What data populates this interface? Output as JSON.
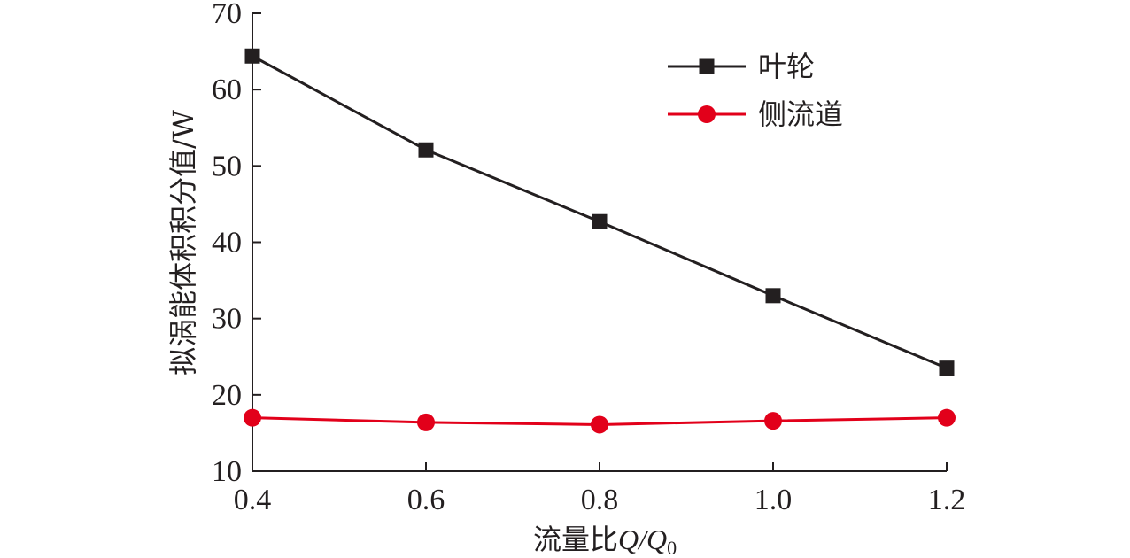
{
  "chart_data": {
    "type": "line",
    "xlabel": "流量比",
    "xlabel_var": "Q/Q",
    "xlabel_sub": "0",
    "ylabel": "拟涡能体积积分值/W",
    "x": [
      0.4,
      0.6,
      0.8,
      1.0,
      1.2
    ],
    "x_tick_labels": [
      "0.4",
      "0.6",
      "0.8",
      "1.0",
      "1.2"
    ],
    "y_ticks": [
      10,
      20,
      30,
      40,
      50,
      60,
      70
    ],
    "y_tick_labels": [
      "10",
      "20",
      "30",
      "40",
      "50",
      "60",
      "70"
    ],
    "xlim": [
      0.4,
      1.2
    ],
    "ylim": [
      10,
      70
    ],
    "grid": false,
    "legend_position": "top-right",
    "series": [
      {
        "name": "叶轮",
        "values": [
          64.4,
          52.1,
          42.7,
          33.0,
          23.5
        ],
        "color": "#231f20",
        "marker": "square"
      },
      {
        "name": "侧流道",
        "values": [
          17.0,
          16.4,
          16.1,
          16.6,
          17.0
        ],
        "color": "#e2001a",
        "marker": "circle"
      }
    ]
  }
}
